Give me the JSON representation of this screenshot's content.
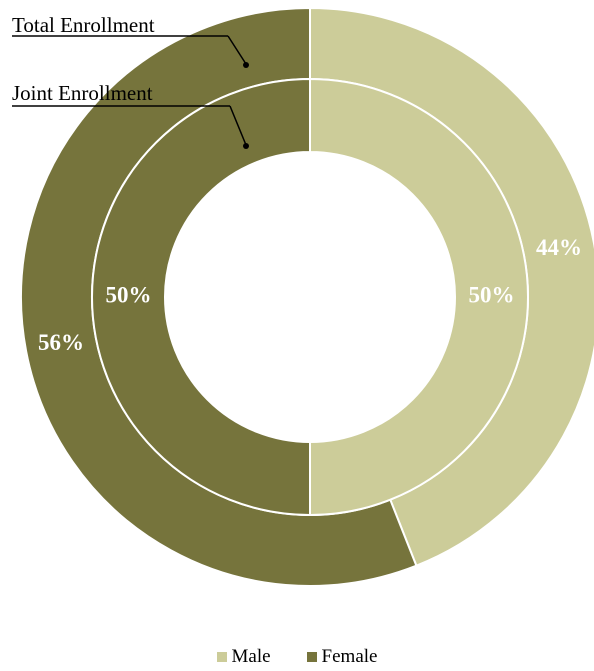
{
  "chart_data": {
    "type": "pie",
    "subtype": "donut",
    "rings": [
      {
        "name": "Total Enrollment",
        "ring": "outer",
        "values": [
          44,
          56
        ],
        "labels": [
          "44%",
          "56%"
        ]
      },
      {
        "name": "Joint Enrollment",
        "ring": "inner",
        "values": [
          50,
          50
        ],
        "labels": [
          "50%",
          "50%"
        ]
      }
    ],
    "categories": [
      "Male",
      "Female"
    ],
    "colors": {
      "Male": "#cccc99",
      "Female": "#76743c"
    },
    "legend_position": "bottom"
  },
  "callouts": {
    "total": "Total Enrollment",
    "joint": "Joint Enrollment"
  },
  "legend": {
    "items": [
      {
        "label": "Male",
        "color": "#cccc99"
      },
      {
        "label": "Female",
        "color": "#76743c"
      }
    ]
  }
}
